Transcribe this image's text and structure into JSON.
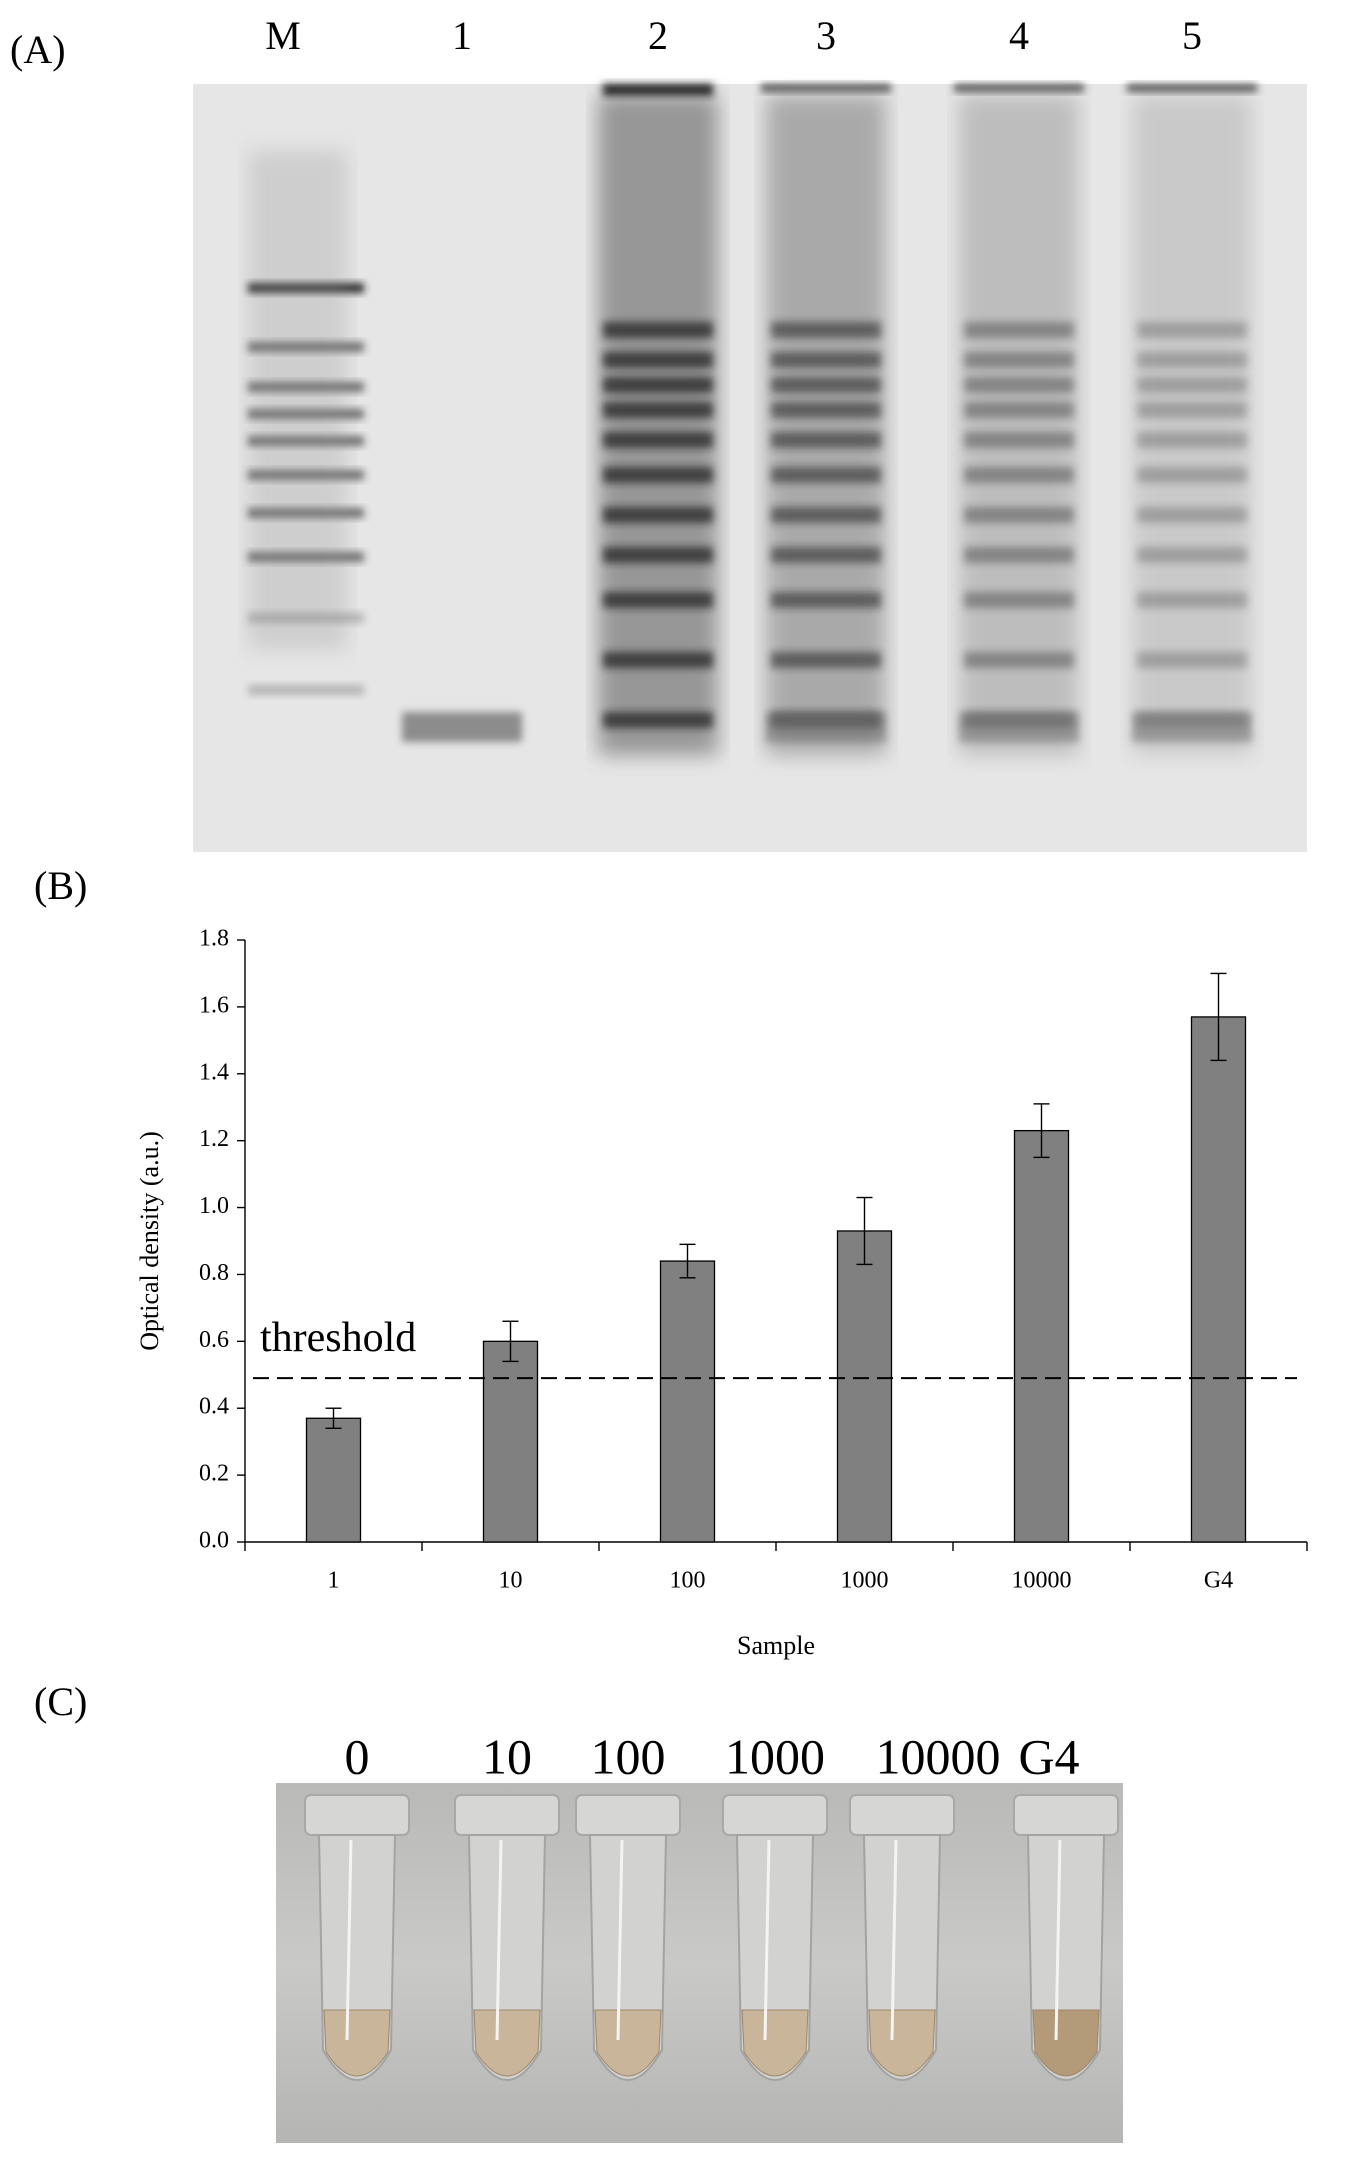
{
  "panel_a": {
    "label": "(A)",
    "lanes": [
      "M",
      "1",
      "2",
      "3",
      "4",
      "5"
    ]
  },
  "panel_b": {
    "label": "(B)"
  },
  "chart_data": {
    "type": "bar",
    "x_label": "Sample",
    "y_label": "Optical density (a.u.)",
    "categories": [
      "1",
      "10",
      "100",
      "1000",
      "10000",
      "G4"
    ],
    "values": [
      0.37,
      0.6,
      0.84,
      0.93,
      1.23,
      1.57
    ],
    "errors": [
      0.03,
      0.06,
      0.05,
      0.1,
      0.08,
      0.13
    ],
    "color": "#808080",
    "ylim": [
      0,
      1.8
    ],
    "yticks": [
      {
        "value": 0,
        "label": "0.0"
      },
      0.2,
      0.4,
      0.6,
      0.8,
      {
        "value": 1,
        "label": "1.0"
      },
      1.2,
      1.4,
      1.6,
      1.8
    ],
    "threshold": {
      "value": 0.49,
      "label": "threshold"
    }
  },
  "panel_c": {
    "label": "(C)",
    "tubes": [
      "0",
      "10",
      "100",
      "1000",
      "10000",
      "G4"
    ]
  }
}
